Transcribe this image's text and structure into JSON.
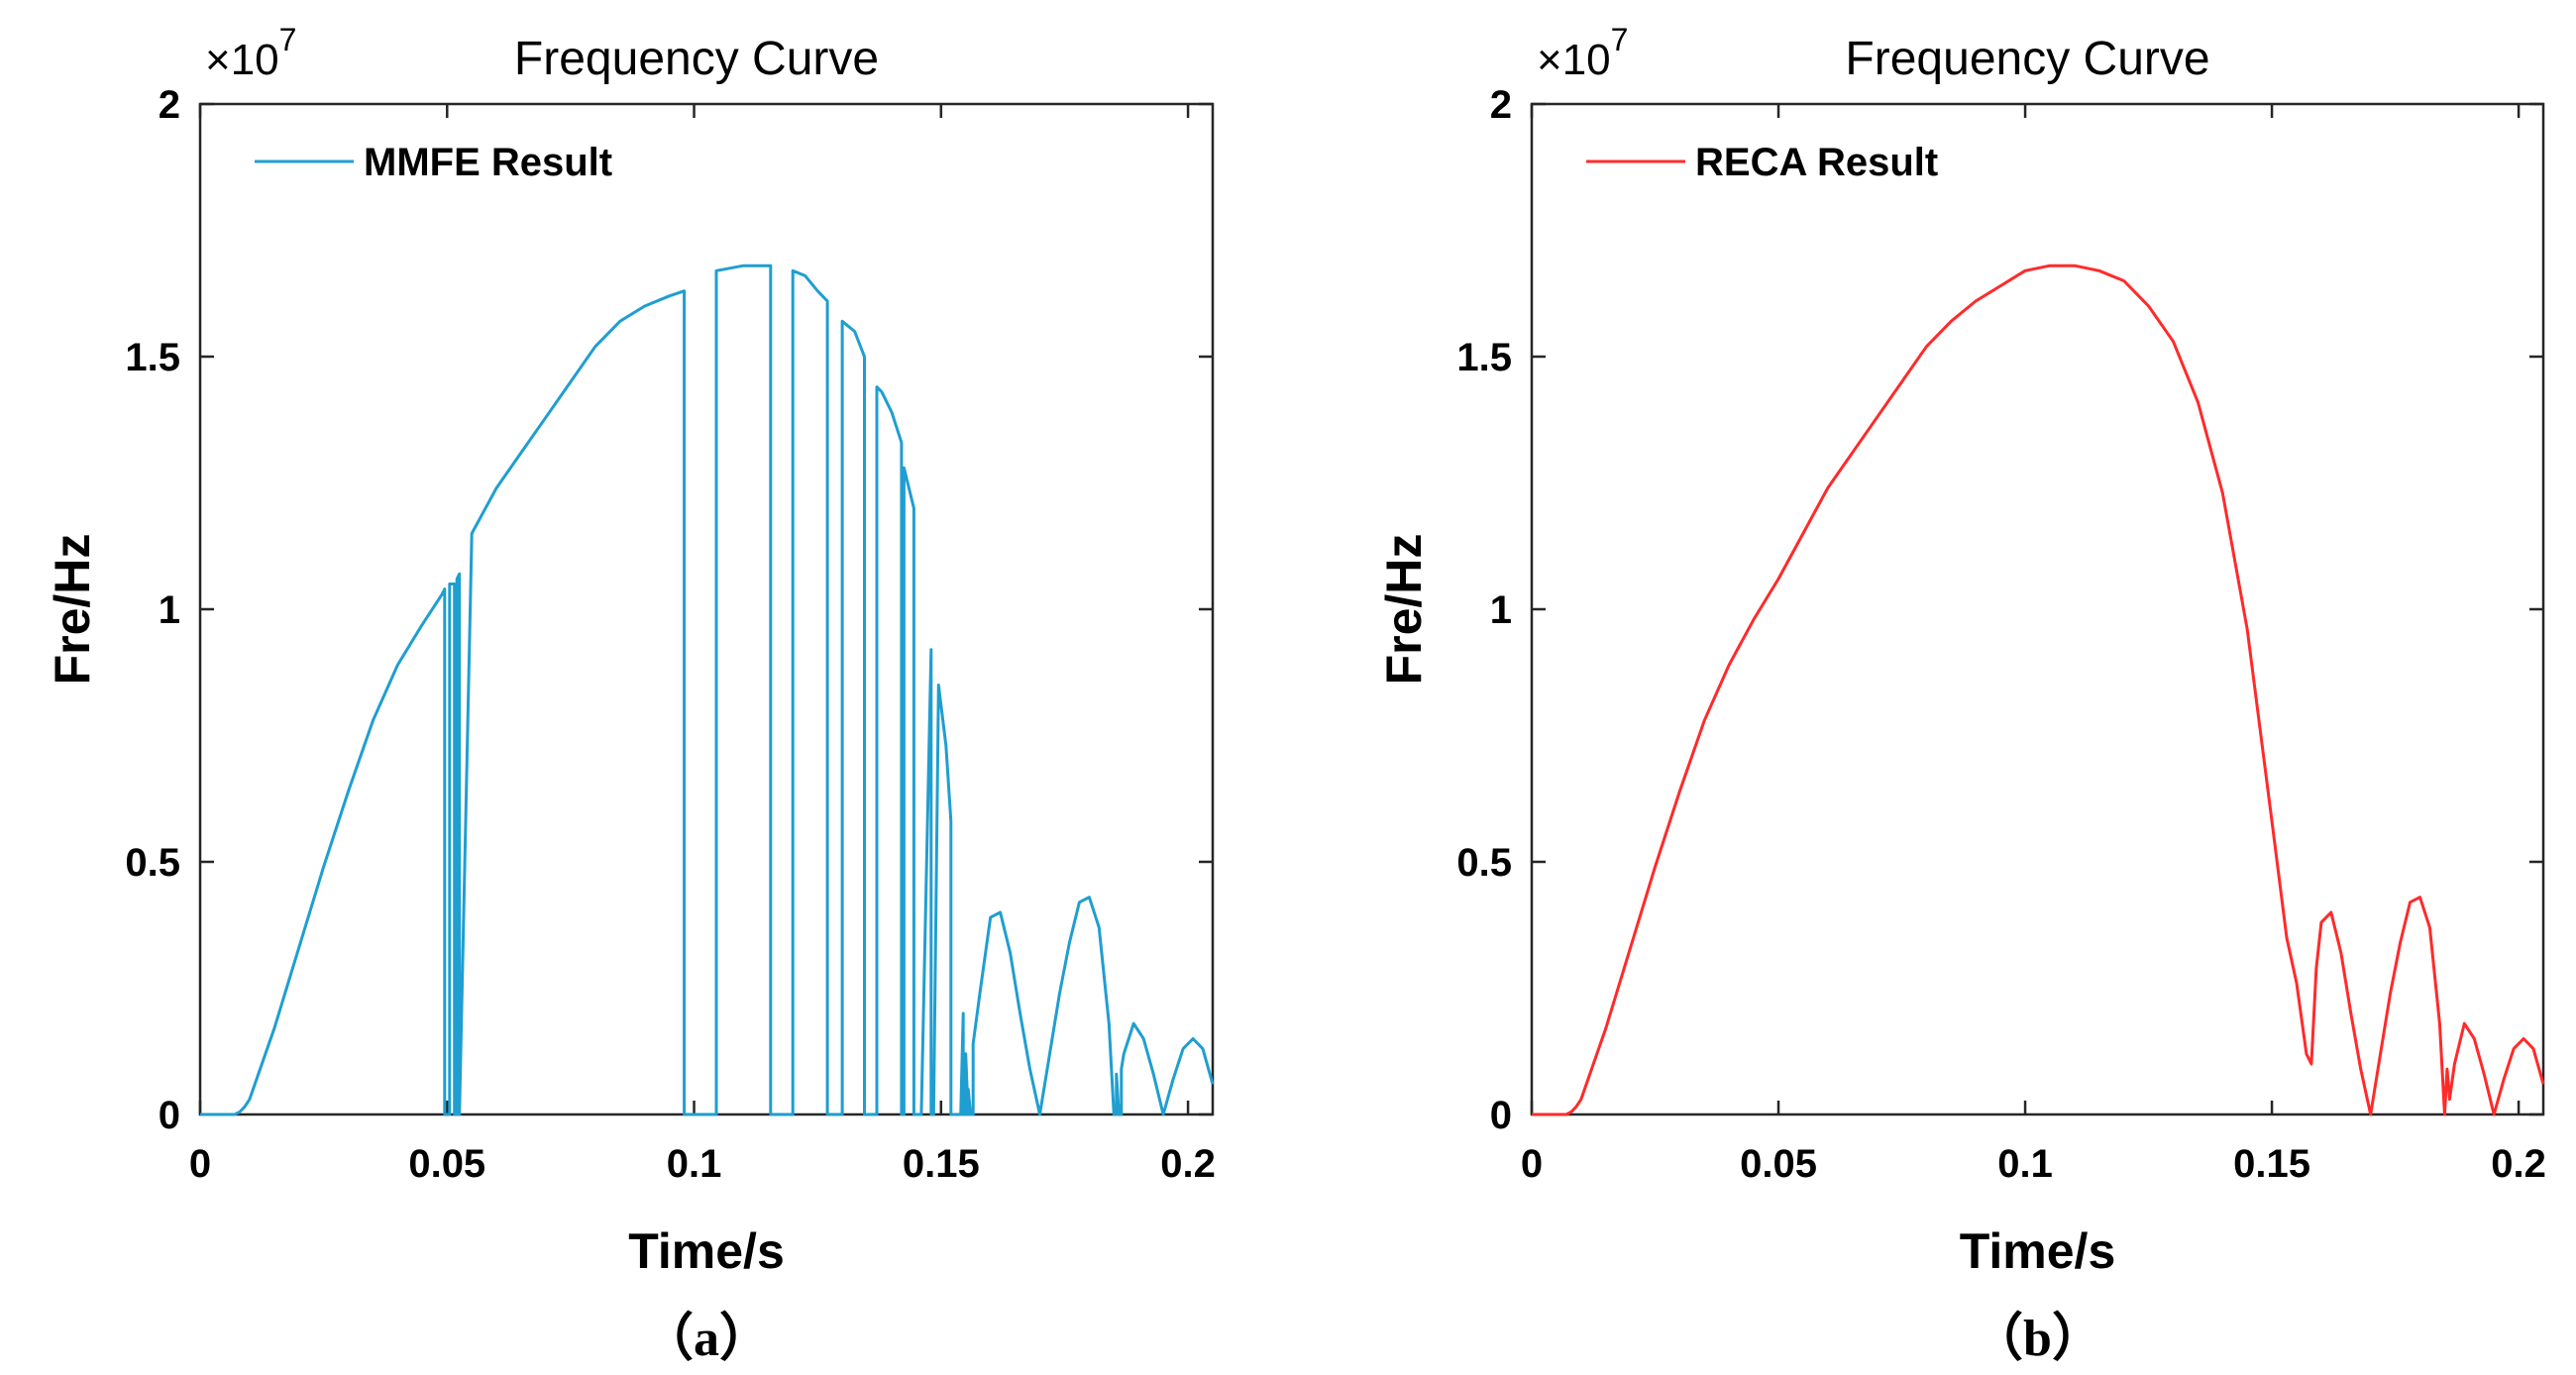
{
  "chart_data": [
    {
      "type": "line",
      "panel_label": "（a）",
      "title": "Frequency Curve",
      "xlabel": "Time/s",
      "ylabel": "Fre/Hz",
      "y_multiplier": "×10",
      "y_exponent": "7",
      "xlim": [
        0,
        0.205
      ],
      "ylim": [
        0,
        20000000
      ],
      "xticks": [
        0,
        0.05,
        0.1,
        0.15,
        0.2
      ],
      "xtick_labels": [
        "0",
        "0.05",
        "0.1",
        "0.15",
        "0.2"
      ],
      "yticks": [
        0,
        5000000,
        10000000,
        15000000,
        20000000
      ],
      "ytick_labels": [
        "0",
        "0.5",
        "1",
        "1.5",
        "2"
      ],
      "legend_loc": "top-left",
      "series": [
        {
          "name": "MMFE Result",
          "color": "#1f9ed1",
          "x": [
            0,
            0.007,
            0.008,
            0.009,
            0.01,
            0.015,
            0.02,
            0.025,
            0.03,
            0.035,
            0.04,
            0.045,
            0.049,
            0.0495,
            0.0495,
            0.0505,
            0.0505,
            0.0515,
            0.0515,
            0.052,
            0.052,
            0.0525,
            0.0525,
            0.055,
            0.06,
            0.065,
            0.07,
            0.075,
            0.08,
            0.085,
            0.09,
            0.095,
            0.098,
            0.098,
            0.1045,
            0.1045,
            0.11,
            0.113,
            0.1155,
            0.1155,
            0.12,
            0.12,
            0.1225,
            0.125,
            0.127,
            0.127,
            0.13,
            0.13,
            0.1325,
            0.1345,
            0.1345,
            0.137,
            0.137,
            0.138,
            0.14,
            0.142,
            0.142,
            0.1425,
            0.1425,
            0.1445,
            0.1445,
            0.146,
            0.148,
            0.148,
            0.1485,
            0.1495,
            0.151,
            0.152,
            0.152,
            0.154,
            0.1545,
            0.1545,
            0.155,
            0.155,
            0.1555,
            0.1555,
            0.156,
            0.1565,
            0.1565,
            0.158,
            0.16,
            0.162,
            0.164,
            0.166,
            0.168,
            0.17,
            0.172,
            0.174,
            0.176,
            0.178,
            0.18,
            0.182,
            0.184,
            0.185,
            0.1855,
            0.1855,
            0.186,
            0.1865,
            0.1865,
            0.187,
            0.189,
            0.191,
            0.193,
            0.195,
            0.197,
            0.199,
            0.201,
            0.203,
            0.205
          ],
          "y": [
            0,
            0,
            50000,
            150000,
            300000,
            1700000,
            3300000,
            4900000,
            6400000,
            7800000,
            8900000,
            9700000,
            10300000,
            10400000,
            0,
            0,
            10500000,
            10500000,
            0,
            0,
            10600000,
            10700000,
            0,
            11500000,
            12400000,
            13100000,
            13800000,
            14500000,
            15200000,
            15700000,
            16000000,
            16200000,
            16300000,
            0,
            0,
            16700000,
            16800000,
            16800000,
            16800000,
            0,
            0,
            16700000,
            16600000,
            16300000,
            16100000,
            0,
            0,
            15700000,
            15500000,
            15000000,
            0,
            0,
            14400000,
            14300000,
            13900000,
            13300000,
            0,
            0,
            12800000,
            12000000,
            0,
            0,
            9200000,
            0,
            0,
            8500000,
            7300000,
            5800000,
            0,
            0,
            2000000,
            0,
            0,
            1200000,
            0,
            500000,
            0,
            0,
            1400000,
            2500000,
            3900000,
            4000000,
            3200000,
            2000000,
            900000,
            0,
            1200000,
            2400000,
            3400000,
            4200000,
            4300000,
            3700000,
            1800000,
            0,
            0,
            800000,
            0,
            0,
            900000,
            1200000,
            1800000,
            1500000,
            800000,
            0,
            700000,
            1300000,
            1500000,
            1300000,
            600000
          ]
        }
      ]
    },
    {
      "type": "line",
      "panel_label": "（b）",
      "title": "Frequency Curve",
      "xlabel": "Time/s",
      "ylabel": "Fre/Hz",
      "y_multiplier": "×10",
      "y_exponent": "7",
      "xlim": [
        0,
        0.205
      ],
      "ylim": [
        0,
        20000000
      ],
      "xticks": [
        0,
        0.05,
        0.1,
        0.15,
        0.2
      ],
      "xtick_labels": [
        "0",
        "0.05",
        "0.1",
        "0.15",
        "0.2"
      ],
      "yticks": [
        0,
        5000000,
        10000000,
        15000000,
        20000000
      ],
      "ytick_labels": [
        "0",
        "0.5",
        "1",
        "1.5",
        "2"
      ],
      "legend_loc": "top-left",
      "series": [
        {
          "name": "RECA Result",
          "color": "#ff2a2a",
          "x": [
            0,
            0.007,
            0.008,
            0.009,
            0.01,
            0.015,
            0.02,
            0.025,
            0.03,
            0.035,
            0.04,
            0.045,
            0.05,
            0.055,
            0.06,
            0.065,
            0.07,
            0.075,
            0.08,
            0.085,
            0.09,
            0.095,
            0.1,
            0.105,
            0.11,
            0.115,
            0.12,
            0.125,
            0.13,
            0.135,
            0.14,
            0.145,
            0.15,
            0.153,
            0.155,
            0.157,
            0.158,
            0.159,
            0.16,
            0.162,
            0.164,
            0.166,
            0.168,
            0.17,
            0.172,
            0.174,
            0.176,
            0.178,
            0.18,
            0.182,
            0.184,
            0.185,
            0.1855,
            0.186,
            0.187,
            0.189,
            0.191,
            0.193,
            0.195,
            0.197,
            0.199,
            0.201,
            0.203,
            0.205
          ],
          "y": [
            0,
            0,
            50000,
            150000,
            300000,
            1700000,
            3300000,
            4900000,
            6400000,
            7800000,
            8900000,
            9800000,
            10600000,
            11500000,
            12400000,
            13100000,
            13800000,
            14500000,
            15200000,
            15700000,
            16100000,
            16400000,
            16700000,
            16800000,
            16800000,
            16700000,
            16500000,
            16000000,
            15300000,
            14100000,
            12300000,
            9600000,
            5800000,
            3500000,
            2600000,
            1200000,
            1000000,
            2900000,
            3800000,
            4000000,
            3200000,
            2000000,
            900000,
            0,
            1200000,
            2400000,
            3400000,
            4200000,
            4300000,
            3700000,
            1800000,
            0,
            900000,
            300000,
            1000000,
            1800000,
            1500000,
            800000,
            0,
            700000,
            1300000,
            1500000,
            1300000,
            600000
          ]
        }
      ]
    }
  ]
}
